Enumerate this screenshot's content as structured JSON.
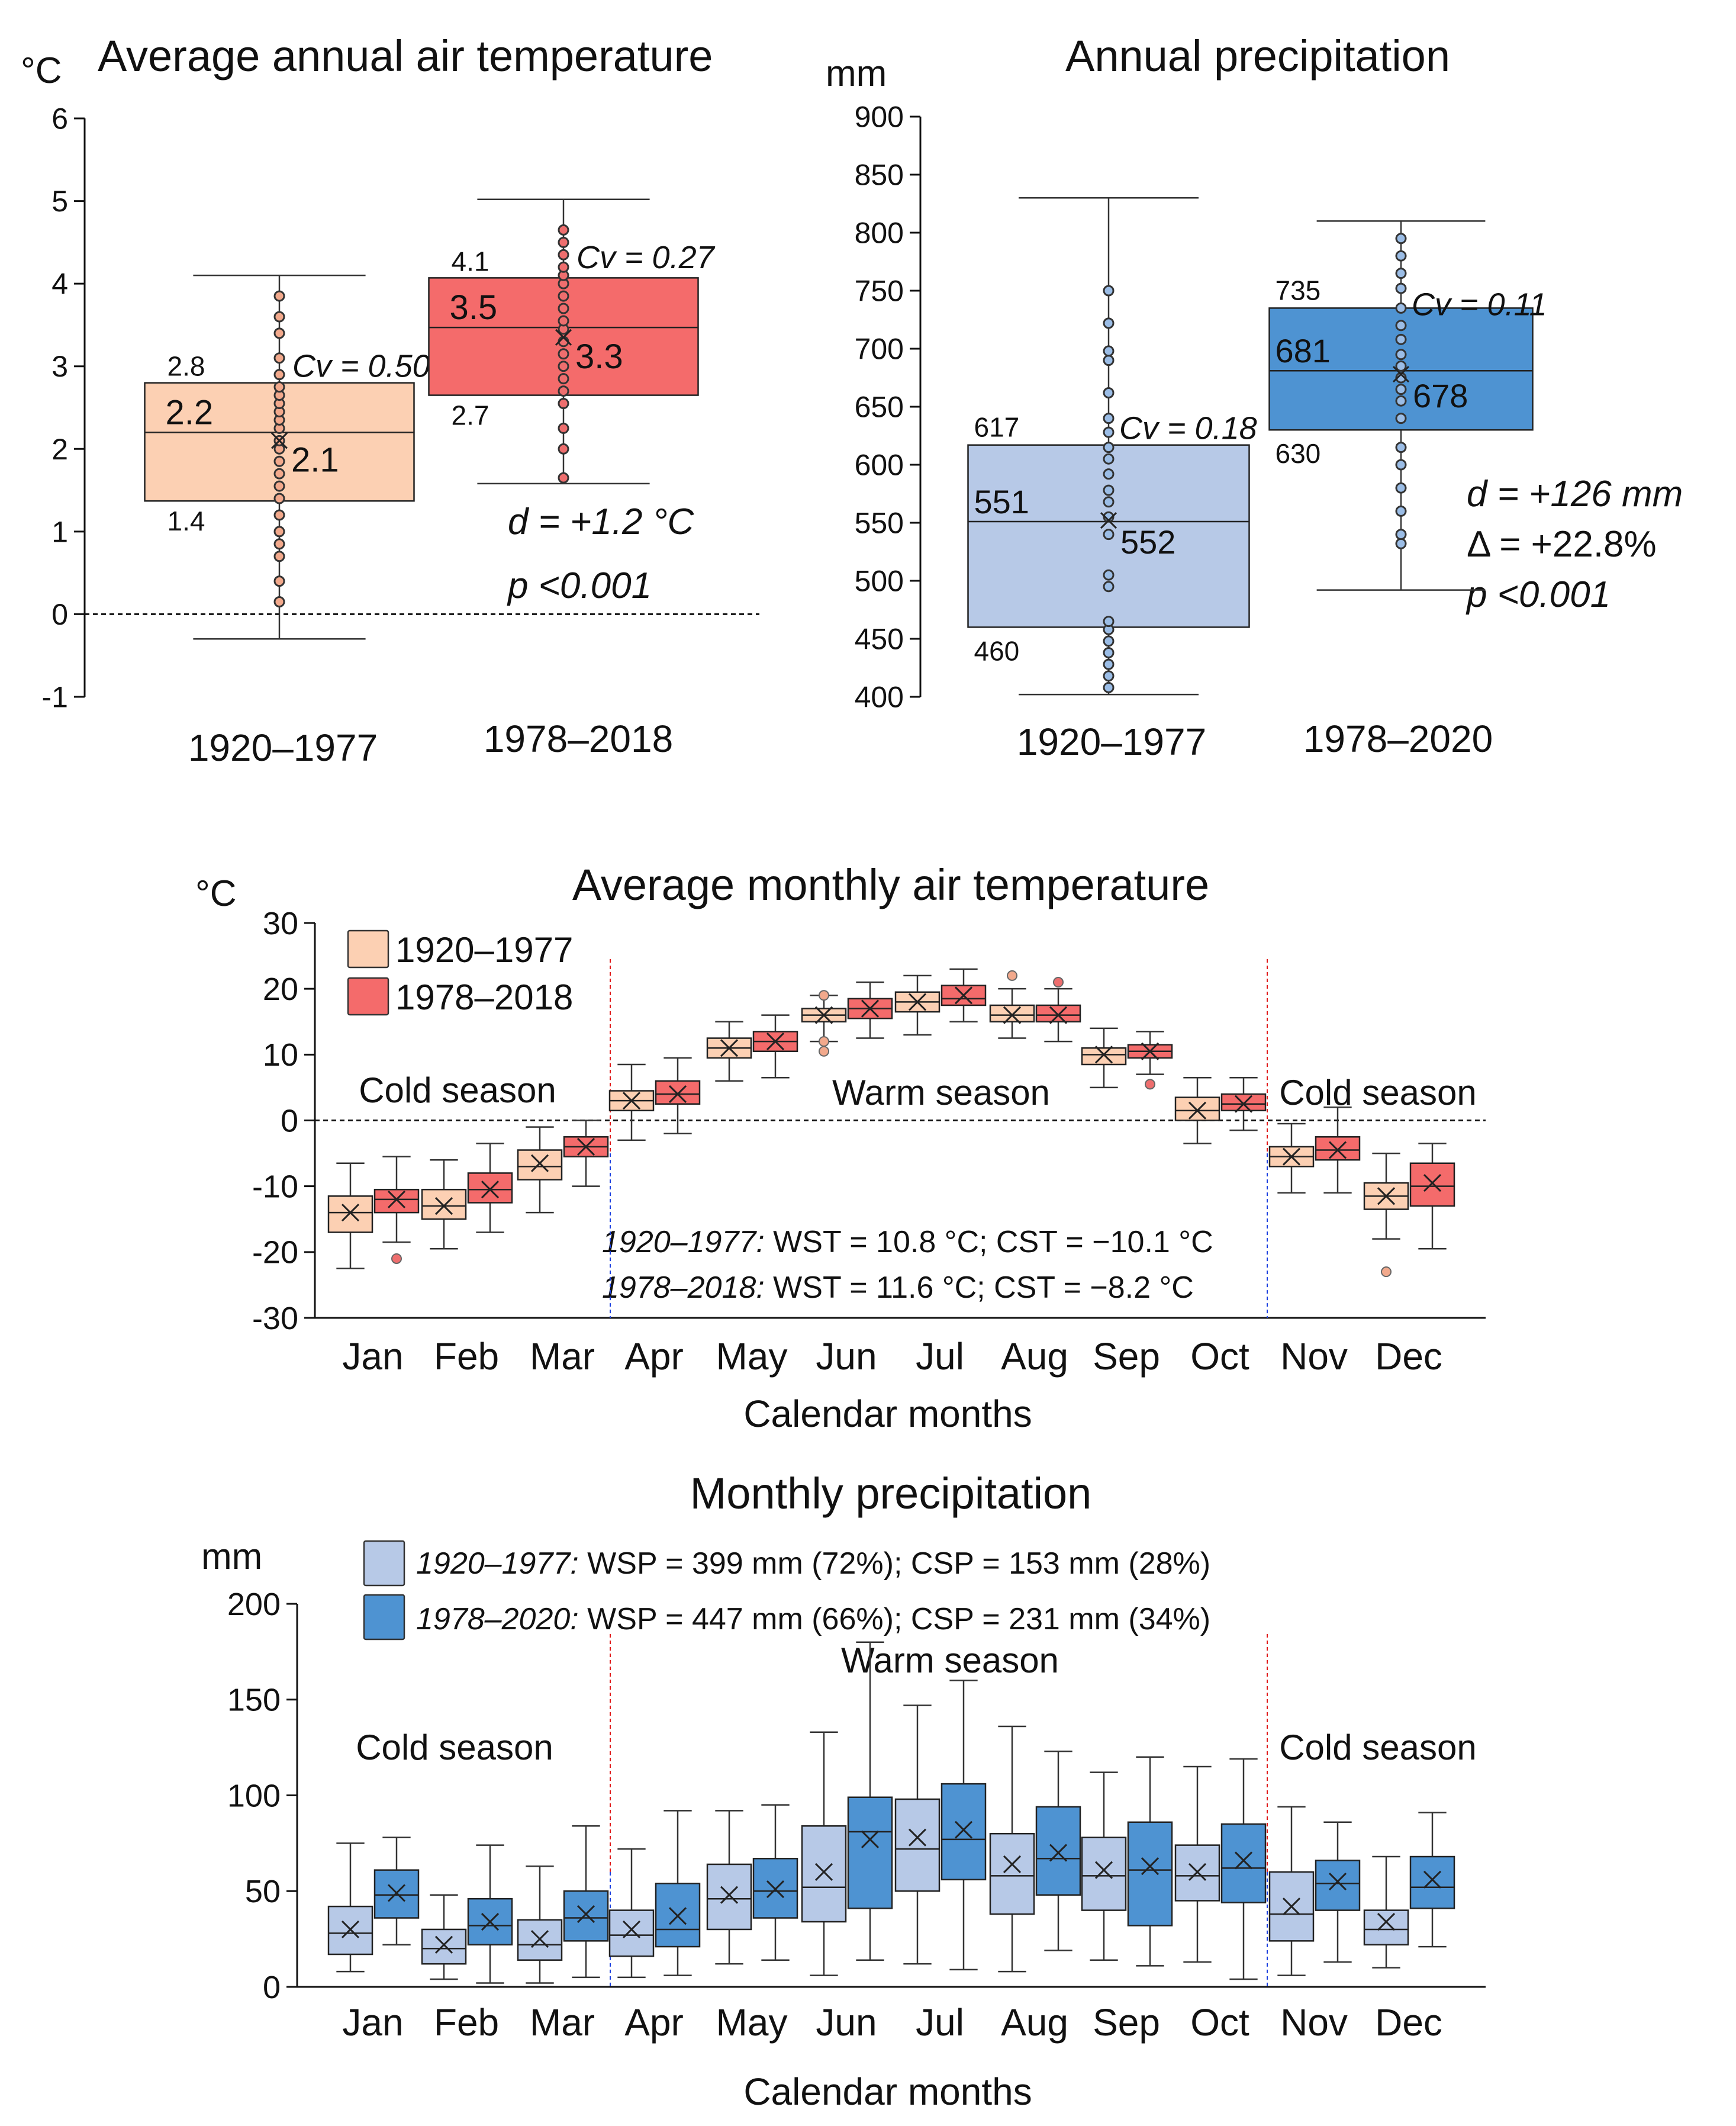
{
  "colors": {
    "temp_early": "#fcd0b3",
    "temp_late": "#f46b6b",
    "prec_early": "#b7c9e7",
    "prec_late": "#4e93d2",
    "cold_season": "#1a3fe0",
    "warm_season": "#e01919",
    "mean_value": "#6b0d3a",
    "dot_temp_early": "#f2a98c",
    "dot_temp_late": "#ee6e6e",
    "dot_prec": "#9bbde6"
  },
  "chart_data": [
    {
      "id": "annual-temp",
      "type": "box",
      "title": "Average annual air temperature",
      "unit": "°C",
      "ylim": [
        -1,
        6
      ],
      "yticks": [
        "-1",
        "0",
        "1",
        "2",
        "3",
        "4",
        "5",
        "6"
      ],
      "reference_line": 0,
      "stats_lines": [
        "d = +1.2 °C",
        "p <0.001"
      ],
      "series": [
        {
          "name": "1920–1977",
          "color_key": "temp_early",
          "min": -0.3,
          "q1": 1.37,
          "median": 2.2,
          "q3": 2.8,
          "max": 4.1,
          "mean": 2.1,
          "label_q3": "2.8",
          "label_q1": "1.4",
          "label_median": "2.2",
          "label_mean": "2.1",
          "cv_label": "Cv = 0.50",
          "points": [
            0.15,
            0.4,
            0.7,
            0.85,
            1.0,
            1.2,
            1.4,
            1.55,
            1.7,
            1.85,
            2.0,
            2.1,
            2.25,
            2.35,
            2.45,
            2.55,
            2.65,
            2.75,
            2.9,
            3.1,
            3.4,
            3.6,
            3.85
          ]
        },
        {
          "name": "1978–2018",
          "color_key": "temp_late",
          "min": 1.58,
          "q1": 2.65,
          "median": 3.47,
          "q3": 4.07,
          "max": 5.02,
          "mean": 3.35,
          "label_q3": "4.1",
          "label_q1": "2.7",
          "label_median": "3.5",
          "label_mean": "3.3",
          "cv_label": "Cv = 0.27",
          "points": [
            1.65,
            2.0,
            2.25,
            2.55,
            2.7,
            2.85,
            3.0,
            3.15,
            3.3,
            3.45,
            3.55,
            3.7,
            3.85,
            4.0,
            4.1,
            4.2,
            4.35,
            4.5,
            4.65
          ]
        }
      ]
    },
    {
      "id": "annual-prec",
      "type": "box",
      "title": "Annual precipitation",
      "unit": "mm",
      "ylim": [
        400,
        900
      ],
      "yticks": [
        "400",
        "450",
        "500",
        "550",
        "600",
        "650",
        "700",
        "750",
        "800",
        "850",
        "900"
      ],
      "stats_lines": [
        "d = +126 mm",
        "Δ = +22.8%",
        "p <0.001"
      ],
      "series": [
        {
          "name": "1920–1977",
          "color_key": "prec_early",
          "min": 402,
          "q1": 460,
          "median": 551,
          "q3": 617,
          "max": 830,
          "mean": 552,
          "label_q3": "617",
          "label_q1": "460",
          "label_median": "551",
          "label_mean": "552",
          "cv_label": "Cv = 0.18",
          "points": [
            408,
            418,
            428,
            438,
            448,
            458,
            465,
            495,
            505,
            540,
            555,
            568,
            578,
            592,
            605,
            615,
            628,
            640,
            662,
            690,
            698,
            722,
            750
          ]
        },
        {
          "name": "1978–2020",
          "color_key": "prec_late",
          "min": 492,
          "q1": 630,
          "median": 681,
          "q3": 735,
          "max": 810,
          "mean": 678,
          "label_q3": "735",
          "label_q1": "630",
          "label_median": "681",
          "label_mean": "678",
          "cv_label": "Cv = 0.11",
          "points": [
            532,
            540,
            560,
            580,
            600,
            615,
            640,
            655,
            665,
            675,
            685,
            695,
            708,
            720,
            735,
            752,
            765,
            780,
            795
          ]
        }
      ]
    },
    {
      "id": "monthly-temp",
      "type": "box",
      "title": "Average monthly air temperature",
      "unit": "°C",
      "xlabel": "Calendar months",
      "ylim": [
        -30,
        30
      ],
      "yticks": [
        "-30",
        "-20",
        "-10",
        "0",
        "10",
        "20",
        "30"
      ],
      "categories": [
        "Jan",
        "Feb",
        "Mar",
        "Apr",
        "May",
        "Jun",
        "Jul",
        "Aug",
        "Sep",
        "Oct",
        "Nov",
        "Dec"
      ],
      "legend": [
        "1920–1977",
        "1978–2018"
      ],
      "season_labels": {
        "cold": "Cold season",
        "warm": "Warm season"
      },
      "note_lines": [
        {
          "period": "1920–1977:",
          "text": " WST = 10.8 °C; CST = −10.1 °C"
        },
        {
          "period": "1978–2018:",
          "text": " WST = 11.6 °C; CST = −8.2 °C"
        }
      ],
      "series": [
        {
          "name": "1920–1977",
          "color_key": "temp_early",
          "boxes": [
            {
              "min": -22.5,
              "q1": -17,
              "median": -14,
              "q3": -11.5,
              "max": -6.5,
              "mean": -14
            },
            {
              "min": -19.5,
              "q1": -15,
              "median": -13,
              "q3": -10.5,
              "max": -6,
              "mean": -13
            },
            {
              "min": -14,
              "q1": -9,
              "median": -7,
              "q3": -4.5,
              "max": -1,
              "mean": -6.5
            },
            {
              "min": -3,
              "q1": 1.5,
              "median": 3,
              "q3": 4.5,
              "max": 8.5,
              "mean": 3
            },
            {
              "min": 6,
              "q1": 9.5,
              "median": 11,
              "q3": 12.5,
              "max": 15,
              "mean": 11
            },
            {
              "min": 12,
              "q1": 15,
              "median": 16,
              "q3": 17,
              "max": 19,
              "mean": 16,
              "outliers": [
                10.5,
                12,
                19
              ]
            },
            {
              "min": 13,
              "q1": 16.5,
              "median": 18,
              "q3": 19.5,
              "max": 22,
              "mean": 18
            },
            {
              "min": 12.5,
              "q1": 15,
              "median": 16,
              "q3": 17.5,
              "max": 20,
              "mean": 16,
              "outliers": [
                22
              ]
            },
            {
              "min": 5,
              "q1": 8.5,
              "median": 10,
              "q3": 11,
              "max": 14,
              "mean": 10
            },
            {
              "min": -3.5,
              "q1": 0,
              "median": 1.5,
              "q3": 3.5,
              "max": 6.5,
              "mean": 1.5
            },
            {
              "min": -11,
              "q1": -7,
              "median": -5.5,
              "q3": -4,
              "max": -0.5,
              "mean": -5.5
            },
            {
              "min": -18,
              "q1": -13.5,
              "median": -11.5,
              "q3": -9.5,
              "max": -5,
              "mean": -11.5,
              "outliers": [
                -23
              ]
            }
          ]
        },
        {
          "name": "1978–2018",
          "color_key": "temp_late",
          "boxes": [
            {
              "min": -18.5,
              "q1": -14,
              "median": -12,
              "q3": -10.5,
              "max": -5.5,
              "mean": -12,
              "outliers": [
                -21
              ]
            },
            {
              "min": -17,
              "q1": -12.5,
              "median": -10.5,
              "q3": -8,
              "max": -3.5,
              "mean": -10.5
            },
            {
              "min": -10,
              "q1": -5.5,
              "median": -4,
              "q3": -2.5,
              "max": 0,
              "mean": -4
            },
            {
              "min": -2,
              "q1": 2.5,
              "median": 4,
              "q3": 6,
              "max": 9.5,
              "mean": 4
            },
            {
              "min": 6.5,
              "q1": 10.5,
              "median": 12,
              "q3": 13.5,
              "max": 16,
              "mean": 12
            },
            {
              "min": 12.5,
              "q1": 15.5,
              "median": 17,
              "q3": 18.5,
              "max": 21,
              "mean": 17
            },
            {
              "min": 15,
              "q1": 17.5,
              "median": 18.5,
              "q3": 20.5,
              "max": 23,
              "mean": 19
            },
            {
              "min": 12,
              "q1": 15,
              "median": 16,
              "q3": 17.5,
              "max": 20,
              "mean": 16,
              "outliers": [
                21
              ]
            },
            {
              "min": 7,
              "q1": 9.5,
              "median": 10.5,
              "q3": 11.5,
              "max": 13.5,
              "mean": 10.5,
              "outliers": [
                5.5
              ]
            },
            {
              "min": -1.5,
              "q1": 1.5,
              "median": 2.5,
              "q3": 4,
              "max": 6.5,
              "mean": 2.5
            },
            {
              "min": -11,
              "q1": -6,
              "median": -4.5,
              "q3": -2.5,
              "max": 2,
              "mean": -4.5
            },
            {
              "min": -19.5,
              "q1": -13,
              "median": -10,
              "q3": -6.5,
              "max": -3.5,
              "mean": -9.5
            }
          ]
        }
      ]
    },
    {
      "id": "monthly-prec",
      "type": "box",
      "title": "Monthly precipitation",
      "unit": "mm",
      "xlabel": "Calendar months",
      "ylim": [
        0,
        200
      ],
      "yticks": [
        "0",
        "50",
        "100",
        "150",
        "200"
      ],
      "categories": [
        "Jan",
        "Feb",
        "Mar",
        "Apr",
        "May",
        "Jun",
        "Jul",
        "Aug",
        "Sep",
        "Oct",
        "Nov",
        "Dec"
      ],
      "season_labels": {
        "cold": "Cold season",
        "warm": "Warm season"
      },
      "legend_lines": [
        {
          "period": "1920–1977:",
          "text": " WSP = 399 mm (72%); CSP = 153 mm (28%)"
        },
        {
          "period": "1978–2020:",
          "text": " WSP = 447 mm (66%); CSP = 231 mm (34%)"
        }
      ],
      "series": [
        {
          "name": "1920–1977",
          "color_key": "prec_early",
          "boxes": [
            {
              "min": 8,
              "q1": 17,
              "median": 28,
              "q3": 42,
              "max": 75,
              "mean": 30
            },
            {
              "min": 4,
              "q1": 12,
              "median": 20,
              "q3": 30,
              "max": 48,
              "mean": 22
            },
            {
              "min": 2,
              "q1": 14,
              "median": 22,
              "q3": 35,
              "max": 63,
              "mean": 25
            },
            {
              "min": 5,
              "q1": 16,
              "median": 27,
              "q3": 40,
              "max": 72,
              "mean": 30
            },
            {
              "min": 12,
              "q1": 30,
              "median": 46,
              "q3": 64,
              "max": 92,
              "mean": 48
            },
            {
              "min": 6,
              "q1": 34,
              "median": 52,
              "q3": 84,
              "max": 133,
              "mean": 60
            },
            {
              "min": 12,
              "q1": 50,
              "median": 72,
              "q3": 98,
              "max": 147,
              "mean": 78
            },
            {
              "min": 8,
              "q1": 38,
              "median": 58,
              "q3": 80,
              "max": 136,
              "mean": 64
            },
            {
              "min": 14,
              "q1": 40,
              "median": 58,
              "q3": 78,
              "max": 112,
              "mean": 61
            },
            {
              "min": 13,
              "q1": 45,
              "median": 58,
              "q3": 74,
              "max": 115,
              "mean": 60
            },
            {
              "min": 6,
              "q1": 24,
              "median": 38,
              "q3": 60,
              "max": 94,
              "mean": 42
            },
            {
              "min": 10,
              "q1": 22,
              "median": 30,
              "q3": 40,
              "max": 68,
              "mean": 34
            }
          ]
        },
        {
          "name": "1978–2020",
          "color_key": "prec_late",
          "boxes": [
            {
              "min": 22,
              "q1": 36,
              "median": 48,
              "q3": 61,
              "max": 78,
              "mean": 49
            },
            {
              "min": 2,
              "q1": 22,
              "median": 32,
              "q3": 46,
              "max": 74,
              "mean": 34
            },
            {
              "min": 5,
              "q1": 24,
              "median": 36,
              "q3": 50,
              "max": 84,
              "mean": 38
            },
            {
              "min": 6,
              "q1": 21,
              "median": 30,
              "q3": 54,
              "max": 92,
              "mean": 37
            },
            {
              "min": 14,
              "q1": 36,
              "median": 50,
              "q3": 67,
              "max": 95,
              "mean": 51
            },
            {
              "min": 14,
              "q1": 41,
              "median": 81,
              "q3": 99,
              "max": 180,
              "mean": 77
            },
            {
              "min": 9,
              "q1": 56,
              "median": 77,
              "q3": 106,
              "max": 160,
              "mean": 82
            },
            {
              "min": 19,
              "q1": 48,
              "median": 67,
              "q3": 94,
              "max": 123,
              "mean": 70
            },
            {
              "min": 11,
              "q1": 32,
              "median": 61,
              "q3": 86,
              "max": 120,
              "mean": 63
            },
            {
              "min": 4,
              "q1": 44,
              "median": 62,
              "q3": 85,
              "max": 119,
              "mean": 66
            },
            {
              "min": 13,
              "q1": 40,
              "median": 54,
              "q3": 66,
              "max": 86,
              "mean": 55
            },
            {
              "min": 21,
              "q1": 41,
              "median": 52,
              "q3": 68,
              "max": 91,
              "mean": 56
            }
          ]
        }
      ]
    }
  ]
}
